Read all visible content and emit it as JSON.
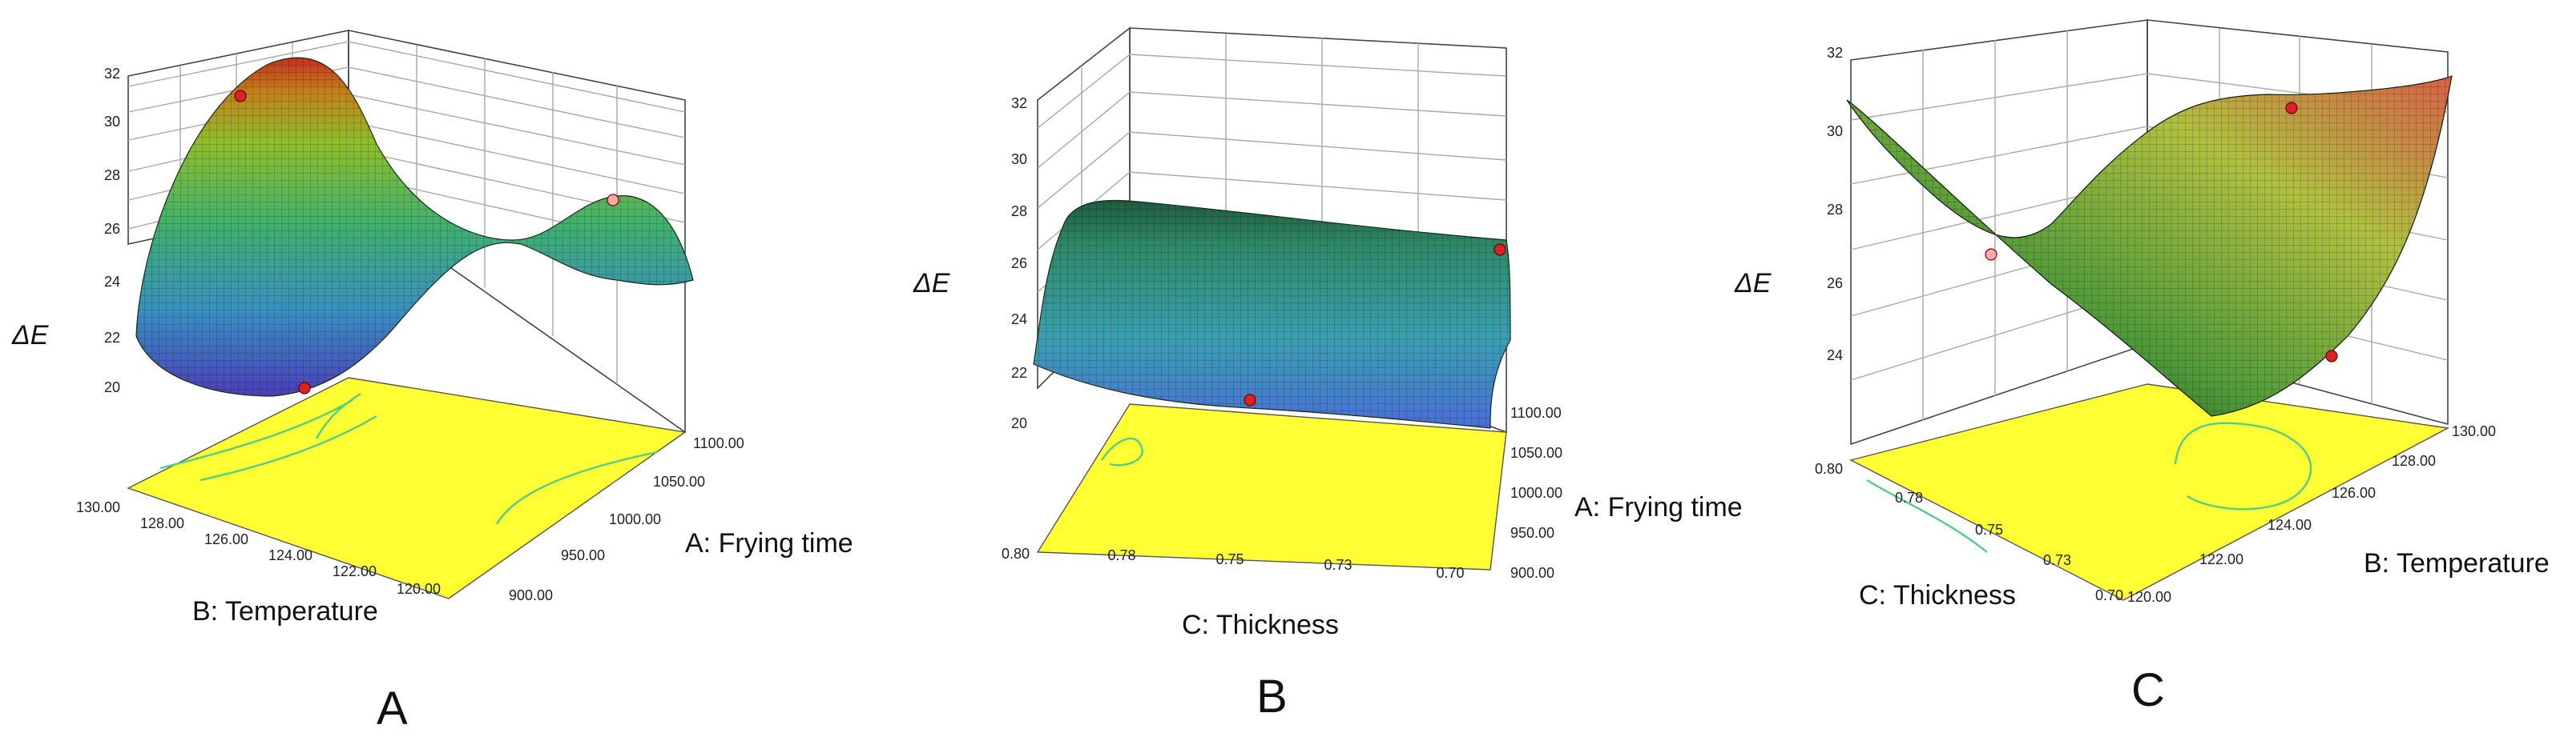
{
  "chart_data": [
    {
      "type": "surface",
      "panel_label": "A",
      "zlabel": "ΔE",
      "z_ticks": [
        "20",
        "22",
        "24",
        "26",
        "28",
        "30",
        "32"
      ],
      "x_axis": {
        "label": "B: Temperature",
        "ticks": [
          "130.00",
          "128.00",
          "126.00",
          "124.00",
          "122.00",
          "120.00"
        ]
      },
      "y_axis": {
        "label": "A: Frying time",
        "ticks": [
          "900.00",
          "950.00",
          "1000.00",
          "1050.00",
          "1100.00"
        ]
      },
      "zlim": [
        20,
        32
      ],
      "design_points": [
        31,
        27,
        20
      ]
    },
    {
      "type": "surface",
      "panel_label": "B",
      "zlabel": "ΔE",
      "z_ticks": [
        "20",
        "22",
        "24",
        "26",
        "28",
        "30",
        "32"
      ],
      "x_axis": {
        "label": "C: Thickness",
        "ticks": [
          "0.80",
          "0.78",
          "0.75",
          "0.73",
          "0.70"
        ]
      },
      "y_axis": {
        "label": "A: Frying time",
        "ticks": [
          "900.00",
          "950.00",
          "1000.00",
          "1050.00",
          "1100.00"
        ]
      },
      "zlim": [
        20,
        32
      ],
      "design_points": [
        26.2,
        21.5
      ]
    },
    {
      "type": "surface",
      "panel_label": "C",
      "zlabel": "ΔE",
      "z_ticks": [
        "24",
        "26",
        "28",
        "30",
        "32"
      ],
      "x_axis": {
        "label": "C: Thickness",
        "ticks": [
          "0.80",
          "0.78",
          "0.75",
          "0.73",
          "0.70"
        ]
      },
      "y_axis": {
        "label": "B: Temperature",
        "ticks": [
          "120.00",
          "122.00",
          "124.00",
          "126.00",
          "128.00",
          "130.00"
        ]
      },
      "zlim": [
        22,
        32
      ],
      "design_points": [
        30.5,
        27,
        24
      ]
    }
  ],
  "colors": {
    "floor": "#ffff33",
    "contour": "#55cc88",
    "marker": "#dd2222",
    "marker_light": "#ffaaaa",
    "surface_low": "#3a3fb0",
    "surface_mid": "#3fae6a",
    "surface_high": "#c43020"
  }
}
